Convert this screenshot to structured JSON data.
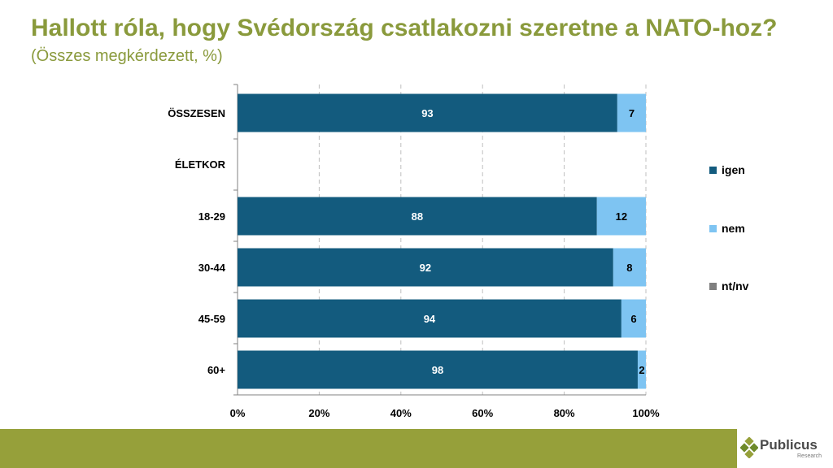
{
  "title": "Hallott róla, hogy Svédország csatlakozni szeretne a NATO-hoz?",
  "subtitle": "(Összes megkérdezett, %)",
  "colors": {
    "igen": "#135b7e",
    "nem": "#7ec4f2",
    "ntnv": "#7f7f7f",
    "accent": "#8a9a3c",
    "footer": "#96a03a"
  },
  "chart_data": {
    "type": "bar",
    "orientation": "horizontal",
    "stacked": true,
    "categories": [
      "ÖSSZESEN",
      "ÉLETKOR",
      "18-29",
      "30-44",
      "45-59",
      "60+"
    ],
    "series": [
      {
        "name": "igen",
        "values": [
          93,
          null,
          88,
          92,
          94,
          98
        ]
      },
      {
        "name": "nem",
        "values": [
          7,
          null,
          12,
          8,
          6,
          2
        ]
      },
      {
        "name": "nt/nv",
        "values": [
          0,
          null,
          0,
          0,
          0,
          0
        ]
      }
    ],
    "xticks": [
      "0%",
      "20%",
      "40%",
      "60%",
      "80%",
      "100%"
    ],
    "xlim": [
      0,
      100
    ],
    "grid": true,
    "legend": "right"
  },
  "logo": {
    "word": "Publicus",
    "sub": "Research"
  }
}
